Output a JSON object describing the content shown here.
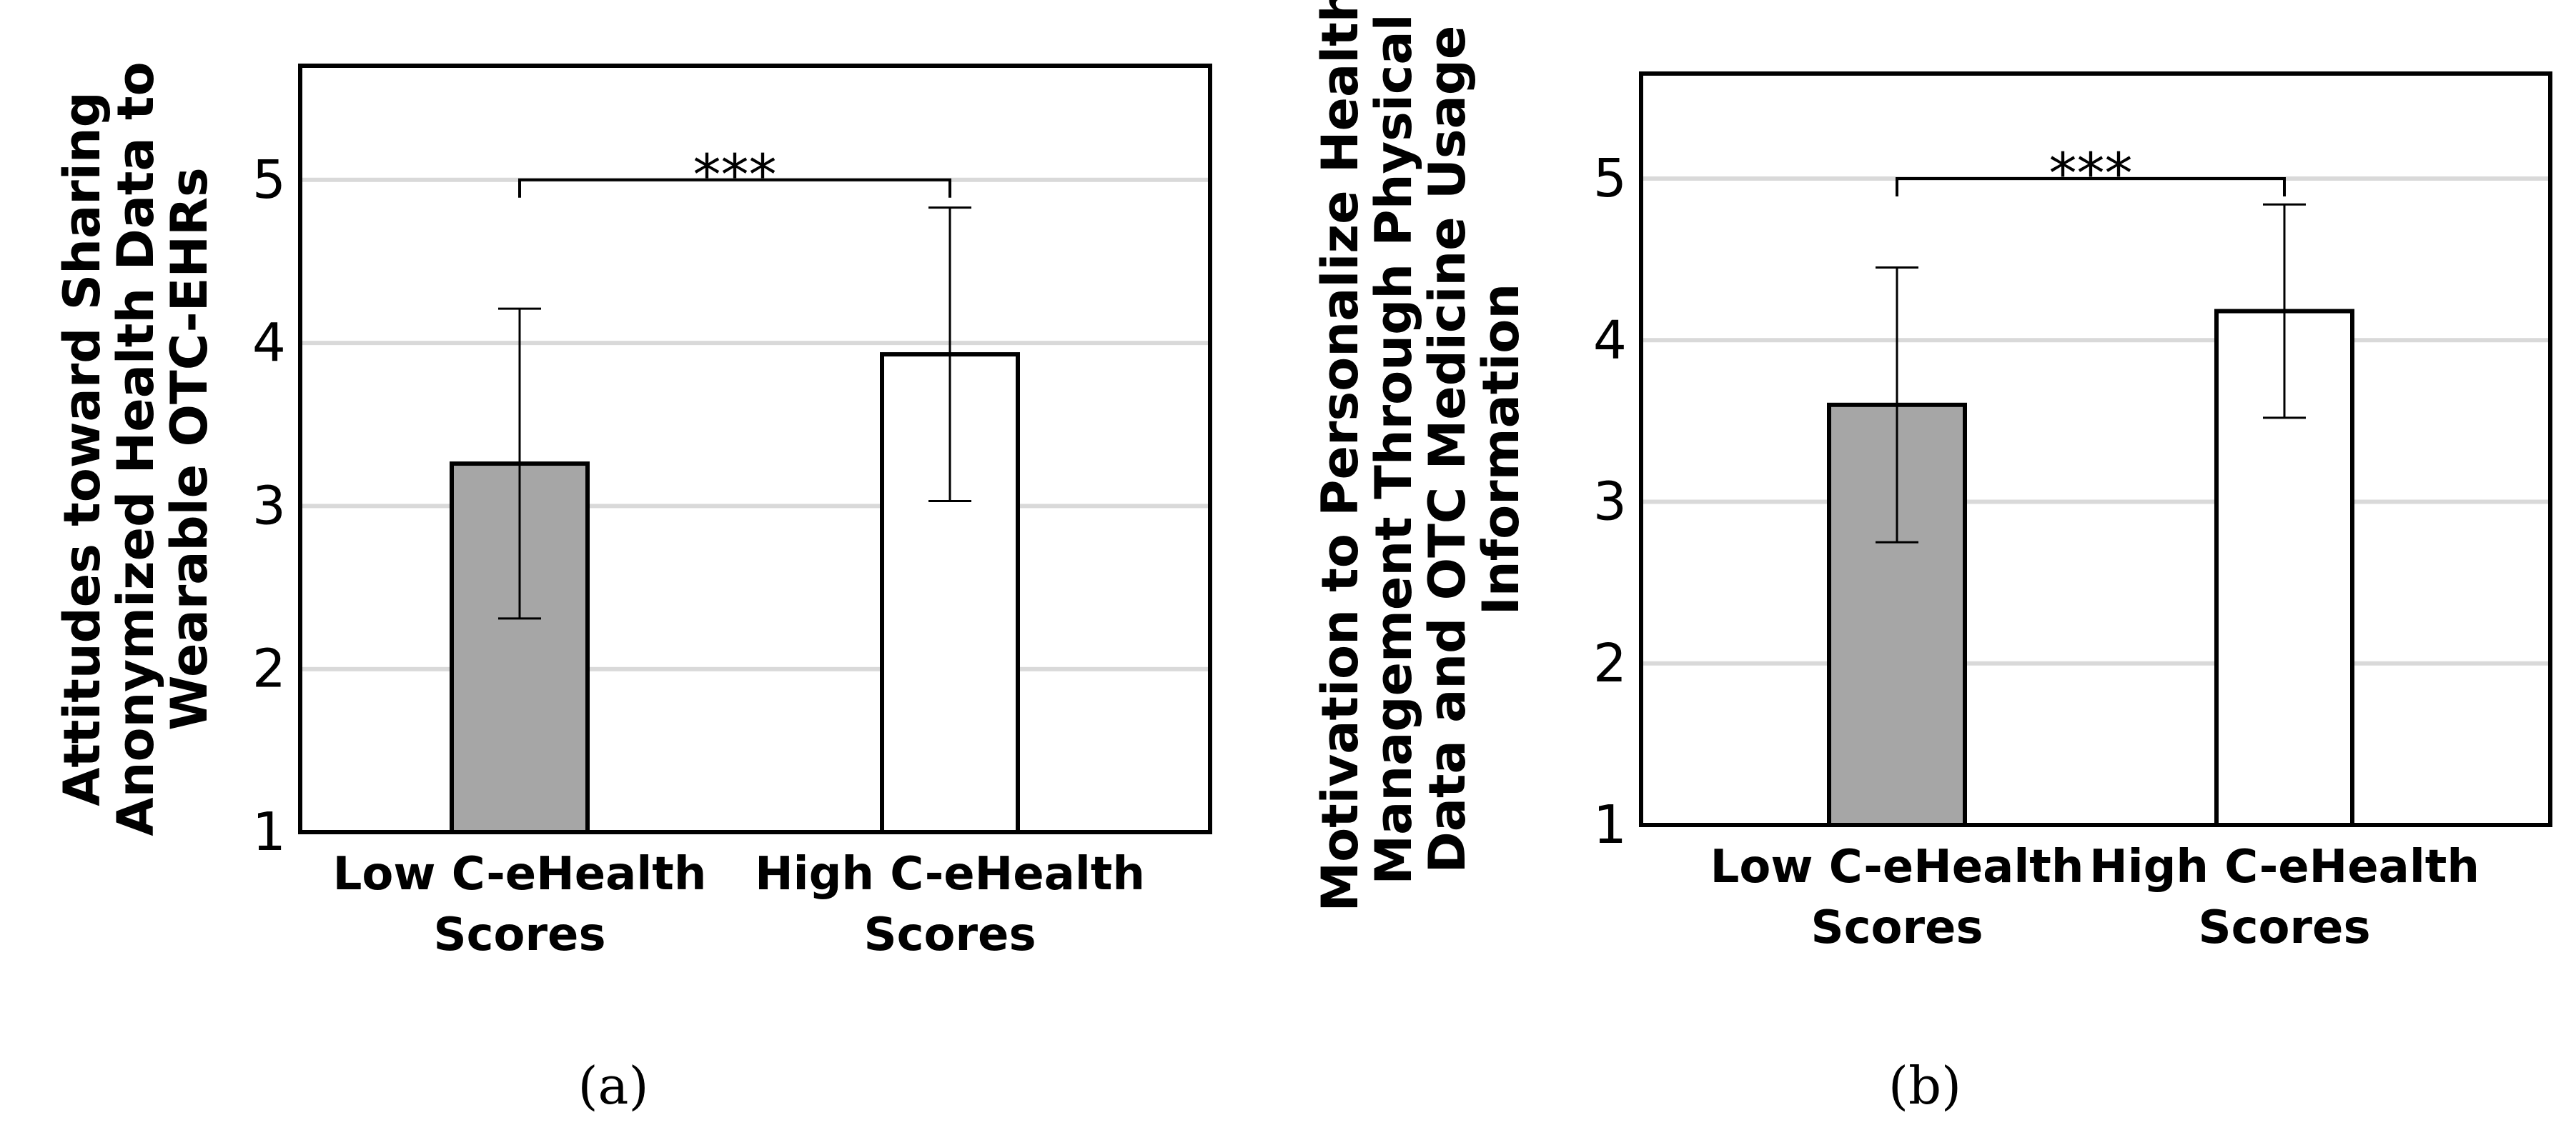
{
  "chart_data": [
    {
      "type": "bar",
      "panel_label": "(a)",
      "categories": [
        "Low C-eHealth Scores",
        "High C-eHealth Scores"
      ],
      "category_lines": [
        [
          "Low C-eHealth",
          "Scores"
        ],
        [
          "High C-eHealth",
          "Scores"
        ]
      ],
      "values": [
        3.26,
        3.93
      ],
      "error": [
        0.95,
        0.9
      ],
      "bar_colors": [
        "#a6a6a6",
        "#ffffff"
      ],
      "ylabel": "Attitudes toward Sharing Anonymized Health Data to Wearable OTC-EHRs",
      "ylabel_lines": [
        "Attitudes toward Sharing",
        "Anonymized Health Data to",
        "Wearable OTC-EHRs"
      ],
      "ylim": [
        1,
        5.7
      ],
      "yticks": [
        1,
        2,
        3,
        4,
        5
      ],
      "grid": true,
      "significance": {
        "label": "***",
        "between": [
          0,
          1
        ],
        "level": 5.0
      }
    },
    {
      "type": "bar",
      "panel_label": "(b)",
      "categories": [
        "Low C-eHealth Scores",
        "High C-eHealth Scores"
      ],
      "category_lines": [
        [
          "Low C-eHealth",
          "Scores"
        ],
        [
          "High C-eHealth",
          "Scores"
        ]
      ],
      "values": [
        3.6,
        4.18
      ],
      "error": [
        0.85,
        0.66
      ],
      "bar_colors": [
        "#a6a6a6",
        "#ffffff"
      ],
      "ylabel": "Motivation to Personalize Health Management Through Physical Data and OTC Medicine Usage Information",
      "ylabel_lines": [
        "Motivation to Personalize Health",
        "Management Through Physical",
        "Data and OTC Medicine Usage",
        "Information"
      ],
      "ylim": [
        1,
        5.65
      ],
      "yticks": [
        1,
        2,
        3,
        4,
        5
      ],
      "grid": true,
      "significance": {
        "label": "***",
        "between": [
          0,
          1
        ],
        "level": 5.0
      }
    }
  ]
}
